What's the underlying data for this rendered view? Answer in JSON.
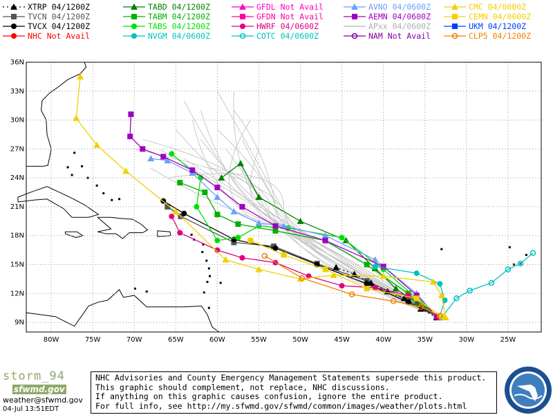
{
  "legend": [
    {
      "label": "XTRP  04/1200Z",
      "color": "#000000",
      "marker": "tri",
      "dash": true
    },
    {
      "label": "TVCN  04/1200Z",
      "color": "#555555",
      "marker": "square"
    },
    {
      "label": "TVCX  04/1200Z",
      "color": "#000000",
      "marker": "circle"
    },
    {
      "label": "NHC  Not Avail",
      "color": "#ff0000",
      "marker": "circle"
    },
    {
      "label": "TABD  04/1200Z",
      "color": "#008000",
      "marker": "tri"
    },
    {
      "label": "TABM  04/1200Z",
      "color": "#00b000",
      "marker": "square"
    },
    {
      "label": "TABS  04/1200Z",
      "color": "#00e000",
      "marker": "circle"
    },
    {
      "label": "NVGM  04/0600Z",
      "color": "#00c0c0",
      "marker": "circle"
    },
    {
      "label": "GFDL  Not Avail",
      "color": "#ff00c0",
      "marker": "tri"
    },
    {
      "label": "GFDN  Not Avail",
      "color": "#ff00a0",
      "marker": "square"
    },
    {
      "label": "HWRF  04/0600Z",
      "color": "#e00080",
      "marker": "circle"
    },
    {
      "label": "COTC  04/0600Z",
      "color": "#00c0c0",
      "marker": "ring"
    },
    {
      "label": "AVNO  04/0600Z",
      "color": "#6aa0ff",
      "marker": "tri"
    },
    {
      "label": "AEMN  04/0600Z",
      "color": "#a000c0",
      "marker": "square"
    },
    {
      "label": "APxx  04/0600Z",
      "color": "#b0b0b0",
      "marker": "none"
    },
    {
      "label": "NAM   Not Avail",
      "color": "#8000a0",
      "marker": "ring"
    },
    {
      "label": "CMC   04/0000Z",
      "color": "#f0d000",
      "marker": "tri"
    },
    {
      "label": "CEMN  04/0000Z",
      "color": "#f0d000",
      "marker": "square"
    },
    {
      "label": "UKM   04/1200Z",
      "color": "#0040ff",
      "marker": "square"
    },
    {
      "label": "CLP5  04/1200Z",
      "color": "#f08000",
      "marker": "ring"
    }
  ],
  "axes": {
    "lat_labels": [
      "36N",
      "33N",
      "30N",
      "27N",
      "24N",
      "21N",
      "18N",
      "15N",
      "12N",
      "9N"
    ],
    "lon_labels": [
      "80W",
      "75W",
      "70W",
      "65W",
      "60W",
      "55W",
      "50W",
      "45W",
      "40W",
      "35W",
      "30W",
      "25W"
    ]
  },
  "map_extent": {
    "lon": [
      -83,
      -21
    ],
    "lat": [
      8,
      36
    ]
  },
  "tracks": [
    {
      "name": "TVCN",
      "color": "#555555",
      "marker": "square",
      "pts": [
        [
          -33.4,
          9.6
        ],
        [
          -37,
          11.3
        ],
        [
          -42,
          13.3
        ],
        [
          -48,
          15.1
        ],
        [
          -53.2,
          16.9
        ],
        [
          -58,
          17.3
        ],
        [
          -64.4,
          20.0
        ],
        [
          -66,
          21.0
        ]
      ]
    },
    {
      "name": "TVCX",
      "color": "#000000",
      "marker": "circle",
      "pts": [
        [
          -33.4,
          9.6
        ],
        [
          -37,
          11.1
        ],
        [
          -42,
          13.0
        ],
        [
          -48,
          15.0
        ],
        [
          -53,
          16.7
        ],
        [
          -58,
          17.6
        ],
        [
          -64,
          20.3
        ],
        [
          -66.5,
          21.6
        ]
      ]
    },
    {
      "name": "XTRP",
      "color": "#000000",
      "marker": "tri",
      "dash": true,
      "pts": [
        [
          -33.6,
          9.5
        ],
        [
          -35.5,
          10.4
        ],
        [
          -37.5,
          11.5
        ],
        [
          -39.5,
          12.2
        ],
        [
          -41.5,
          13.1
        ],
        [
          -43.5,
          14.0
        ],
        [
          -45.7,
          14.7
        ]
      ]
    },
    {
      "name": "TABD",
      "color": "#008000",
      "marker": "tri",
      "pts": [
        [
          -33.6,
          9.6
        ],
        [
          -36,
          11
        ],
        [
          -38.5,
          12.5
        ],
        [
          -41,
          14.6
        ],
        [
          -44.5,
          17.5
        ],
        [
          -50,
          19.5
        ],
        [
          -55,
          22
        ],
        [
          -57.2,
          25.5
        ],
        [
          -59.5,
          24
        ]
      ]
    },
    {
      "name": "TABM",
      "color": "#00b000",
      "marker": "square",
      "pts": [
        [
          -33.6,
          9.6
        ],
        [
          -37,
          12
        ],
        [
          -42,
          15
        ],
        [
          -47,
          17.5
        ],
        [
          -53,
          18.5
        ],
        [
          -57.5,
          19.2
        ],
        [
          -60,
          20.2
        ],
        [
          -61.5,
          22.5
        ],
        [
          -64.5,
          23.5
        ]
      ]
    },
    {
      "name": "TABS",
      "color": "#00e000",
      "marker": "circle",
      "pts": [
        [
          -33.6,
          9.6
        ],
        [
          -36,
          11.5
        ],
        [
          -40,
          14.5
        ],
        [
          -45,
          17.8
        ],
        [
          -51.5,
          18.8
        ],
        [
          -55,
          19
        ],
        [
          -57.5,
          17.8
        ],
        [
          -60,
          17.5
        ],
        [
          -62.5,
          21
        ],
        [
          -62,
          24
        ],
        [
          -65.5,
          26.5
        ]
      ]
    },
    {
      "name": "AVNO",
      "color": "#6aa0ff",
      "marker": "tri",
      "pts": [
        [
          -33.6,
          9.6
        ],
        [
          -36,
          12
        ],
        [
          -41,
          15.5
        ],
        [
          -47,
          18
        ],
        [
          -52,
          19
        ],
        [
          -55,
          19.3
        ],
        [
          -58,
          20.5
        ],
        [
          -60,
          22
        ],
        [
          -63,
          24.5
        ],
        [
          -66,
          25.8
        ],
        [
          -68,
          26
        ]
      ]
    },
    {
      "name": "AEMN",
      "color": "#a000c0",
      "marker": "square",
      "pts": [
        [
          -33.6,
          9.6
        ],
        [
          -36,
          11.8
        ],
        [
          -40,
          14.8
        ],
        [
          -47,
          17.5
        ],
        [
          -53,
          19
        ],
        [
          -57,
          21
        ],
        [
          -60,
          23
        ],
        [
          -63,
          24.8
        ],
        [
          -66.5,
          26.2
        ],
        [
          -69,
          27
        ],
        [
          -70.5,
          28.3
        ],
        [
          -70.4,
          30.6
        ]
      ]
    },
    {
      "name": "HWRF",
      "color": "#e00080",
      "marker": "circle",
      "pts": [
        [
          -33.4,
          9.5
        ],
        [
          -37,
          11.8
        ],
        [
          -41,
          12.6
        ],
        [
          -45,
          12.8
        ],
        [
          -49,
          13.8
        ],
        [
          -53,
          15.2
        ],
        [
          -57,
          15.7
        ],
        [
          -60,
          16.5
        ],
        [
          -64.5,
          18.3
        ],
        [
          -65.5,
          20
        ]
      ]
    },
    {
      "name": "NVGM",
      "color": "#00c0c0",
      "marker": "circle",
      "pts": [
        [
          -33.2,
          9.7
        ],
        [
          -32.6,
          11.3
        ],
        [
          -33.2,
          13.0
        ],
        [
          -36,
          14.1
        ],
        [
          -41,
          14.8
        ]
      ]
    },
    {
      "name": "COTC",
      "color": "#00c0c0",
      "marker": "ring",
      "pts": [
        [
          -33,
          9.5
        ],
        [
          -31.2,
          11.5
        ],
        [
          -29.6,
          12.3
        ],
        [
          -27,
          13.1
        ],
        [
          -25,
          14.5
        ],
        [
          -23.5,
          15.1
        ],
        [
          -22,
          16.2
        ]
      ]
    },
    {
      "name": "CMC",
      "color": "#f0d000",
      "marker": "tri",
      "pts": [
        [
          -32.5,
          9.5
        ],
        [
          -33,
          11.8
        ],
        [
          -34,
          13.2
        ],
        [
          -40,
          13.8
        ],
        [
          -46,
          13.9
        ],
        [
          -50,
          13.5
        ],
        [
          -55,
          14.5
        ],
        [
          -59,
          15.5
        ],
        [
          -65,
          20.5
        ],
        [
          -71,
          24.7
        ],
        [
          -74.5,
          27.4
        ],
        [
          -77,
          30.2
        ],
        [
          -76.5,
          34.5
        ]
      ]
    },
    {
      "name": "CEMN",
      "color": "#f0d000",
      "marker": "square",
      "pts": [
        [
          -33,
          9.6
        ],
        [
          -36,
          11.5
        ],
        [
          -42,
          12.5
        ],
        [
          -47,
          14.5
        ],
        [
          -52,
          16
        ],
        [
          -56,
          17.5
        ]
      ]
    },
    {
      "name": "CLP5",
      "color": "#f08000",
      "marker": "ring",
      "pts": [
        [
          -33.2,
          9.7
        ],
        [
          -35.5,
          10.6
        ],
        [
          -38.8,
          11.2
        ],
        [
          -43.8,
          11.9
        ],
        [
          -49.8,
          13.6
        ],
        [
          -54.3,
          15.9
        ]
      ]
    }
  ],
  "footer": {
    "brand": "storm_94",
    "brand2": "sfwmd.gov",
    "email": "weather@sfwmd.gov",
    "stamp": "04-Jul 13:51EDT",
    "disclaimer": [
      "NHC Advisories and County Emergency Management Statements supersede this product.",
      "This graphic should complement, not replace, NHC discussions.",
      "If anything on this graphic causes confusion, ignore the entire product.",
      "For full info, see  http://my.sfwmd.gov/sfwmd/common/images/weather/plots.html"
    ]
  }
}
